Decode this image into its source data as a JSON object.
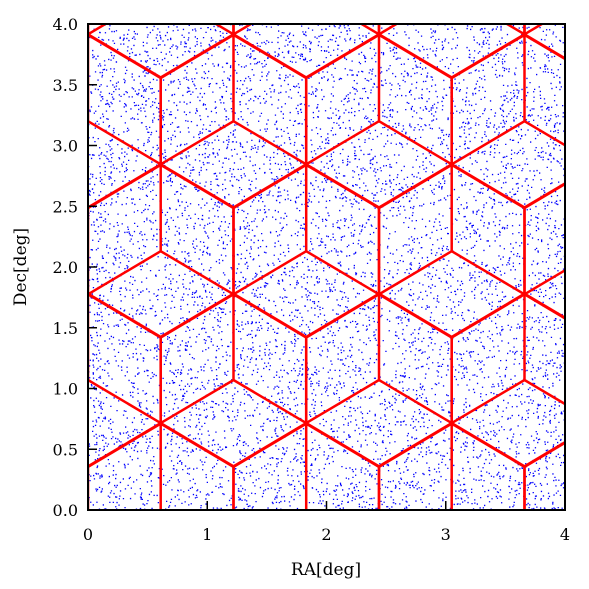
{
  "chart_data": {
    "type": "scatter",
    "title": "",
    "xlabel": "RA[deg]",
    "ylabel": "Dec[deg]",
    "xlim": [
      0,
      4
    ],
    "ylim": [
      0,
      4
    ],
    "xticks": [
      "0",
      "1",
      "2",
      "3",
      "4"
    ],
    "yticks": [
      "0.0",
      "0.5",
      "1.0",
      "1.5",
      "2.0",
      "2.5",
      "3.0",
      "3.5",
      "4.0"
    ],
    "grid": false,
    "legend": "none",
    "series": [
      {
        "kind": "points",
        "color": "#0000ff",
        "description_count": 12000,
        "distribution": "uniform random over RA 0–4 deg, Dec 0–4 deg"
      },
      {
        "kind": "tiling",
        "color": "#ff0000",
        "pattern": "hexagonal tiling subdivided into rhombi (tumbling-blocks)",
        "hex_centers": [
          [
            0.0,
            3.2
          ],
          [
            1.22,
            3.2
          ],
          [
            2.44,
            3.2
          ],
          [
            3.66,
            3.2
          ],
          [
            0.61,
            2.13
          ],
          [
            1.83,
            2.13
          ],
          [
            3.05,
            2.13
          ],
          [
            4.27,
            2.13
          ],
          [
            0.0,
            1.07
          ],
          [
            1.22,
            1.07
          ],
          [
            2.44,
            1.07
          ],
          [
            3.66,
            1.07
          ],
          [
            0.61,
            0.0
          ],
          [
            1.83,
            0.0
          ],
          [
            3.05,
            0.0
          ],
          [
            4.27,
            0.0
          ],
          [
            0.61,
            4.27
          ],
          [
            1.83,
            4.27
          ],
          [
            3.05,
            4.27
          ],
          [
            4.27,
            4.27
          ]
        ],
        "hex_radius_ra": 0.61,
        "hex_radius_dec": 0.71
      }
    ]
  }
}
